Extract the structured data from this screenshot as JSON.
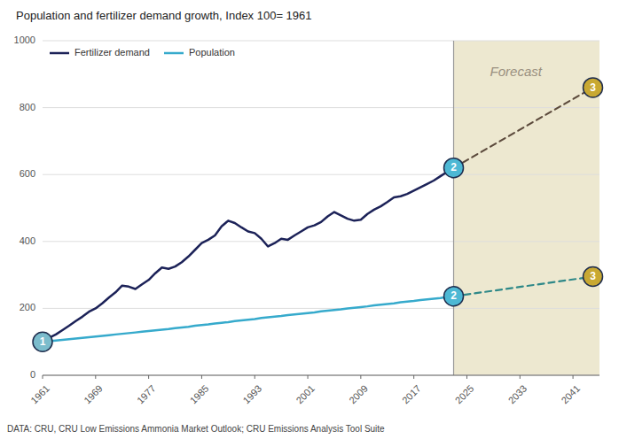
{
  "chart_data": {
    "type": "line",
    "title": "Population and fertilizer demand growth, Index 100= 1961",
    "footnote": "DATA: CRU, CRU Low Emissions Ammonia Market Outlook; CRU Emissions Analysis Tool Suite",
    "xlim": [
      1961,
      2045
    ],
    "ylim": [
      0,
      1000
    ],
    "xticks": [
      1961,
      1969,
      1977,
      1985,
      1993,
      2001,
      2009,
      2017,
      2025,
      2033,
      2041
    ],
    "yticks": [
      0,
      200,
      400,
      600,
      800,
      1000
    ],
    "grid": true,
    "legend": "upper left",
    "forecast_start": 2023,
    "forecast_color": "#ede8d0",
    "forecast_label": "Forecast",
    "series": [
      {
        "name": "Fertilizer demand",
        "color": "#1c2258",
        "line_style": "solid",
        "x": [
          1961,
          1962,
          1963,
          1964,
          1965,
          1966,
          1967,
          1968,
          1969,
          1970,
          1971,
          1972,
          1973,
          1974,
          1975,
          1976,
          1977,
          1978,
          1979,
          1980,
          1981,
          1982,
          1983,
          1984,
          1985,
          1986,
          1987,
          1988,
          1989,
          1990,
          1991,
          1992,
          1993,
          1994,
          1995,
          1996,
          1997,
          1998,
          1999,
          2000,
          2001,
          2002,
          2003,
          2004,
          2005,
          2006,
          2007,
          2008,
          2009,
          2010,
          2011,
          2012,
          2013,
          2014,
          2015,
          2016,
          2017,
          2018,
          2019,
          2020,
          2021,
          2022,
          2023
        ],
        "values": [
          100,
          112,
          122,
          135,
          148,
          162,
          175,
          190,
          200,
          215,
          232,
          248,
          268,
          265,
          258,
          272,
          285,
          305,
          322,
          318,
          325,
          338,
          355,
          375,
          395,
          405,
          418,
          445,
          462,
          455,
          442,
          430,
          425,
          408,
          385,
          395,
          408,
          405,
          418,
          430,
          442,
          448,
          458,
          475,
          488,
          478,
          468,
          462,
          465,
          482,
          495,
          505,
          518,
          532,
          535,
          542,
          552,
          562,
          572,
          582,
          595,
          608,
          620
        ]
      },
      {
        "name": "Population",
        "color": "#36aacc",
        "line_style": "solid",
        "x": [
          1961,
          1962,
          1963,
          1964,
          1965,
          1966,
          1967,
          1968,
          1969,
          1970,
          1971,
          1972,
          1973,
          1974,
          1975,
          1976,
          1977,
          1978,
          1979,
          1980,
          1981,
          1982,
          1983,
          1984,
          1985,
          1986,
          1987,
          1988,
          1989,
          1990,
          1991,
          1992,
          1993,
          1994,
          1995,
          1996,
          1997,
          1998,
          1999,
          2000,
          2001,
          2002,
          2003,
          2004,
          2005,
          2006,
          2007,
          2008,
          2009,
          2010,
          2011,
          2012,
          2013,
          2014,
          2015,
          2016,
          2017,
          2018,
          2019,
          2020,
          2021,
          2022,
          2023
        ],
        "values": [
          100,
          102,
          104,
          106,
          108,
          110,
          112,
          114,
          116,
          118,
          120,
          122,
          124,
          126,
          128,
          130,
          132,
          134,
          136,
          138,
          141,
          143,
          145,
          148,
          150,
          152,
          155,
          157,
          159,
          162,
          164,
          166,
          168,
          171,
          173,
          175,
          177,
          180,
          182,
          184,
          186,
          188,
          191,
          193,
          195,
          197,
          200,
          202,
          204,
          206,
          209,
          211,
          213,
          215,
          218,
          220,
          222,
          225,
          227,
          229,
          231,
          234,
          236
        ]
      },
      {
        "color": "#5c4a3c",
        "line_style": "dashed",
        "x": [
          2023,
          2044
        ],
        "values": [
          620,
          860
        ]
      },
      {
        "color": "#2e8888",
        "line_style": "dashed",
        "x": [
          2023,
          2044
        ],
        "values": [
          236,
          295
        ]
      }
    ],
    "annotations": [
      {
        "text": "1",
        "x": 1961,
        "y": 100,
        "color": "#7bbccc"
      },
      {
        "text": "2",
        "x": 2023,
        "y": 620,
        "color": "#4db8d4"
      },
      {
        "text": "2",
        "x": 2023,
        "y": 236,
        "color": "#4db8d4"
      },
      {
        "text": "3",
        "x": 2044,
        "y": 860,
        "color": "#c8a832"
      },
      {
        "text": "3",
        "x": 2044,
        "y": 295,
        "color": "#c8a832"
      }
    ]
  }
}
